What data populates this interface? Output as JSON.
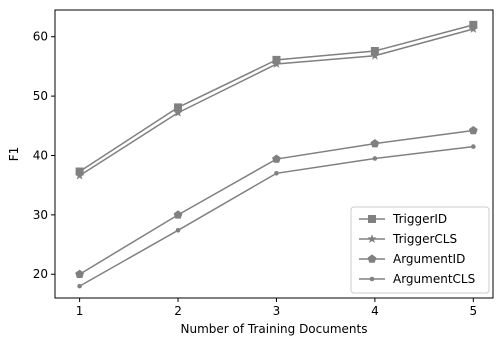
{
  "chart_data": {
    "type": "line",
    "title": "",
    "xlabel": "Number of Training Documents",
    "ylabel": "F1",
    "x": [
      1,
      2,
      3,
      4,
      5
    ],
    "xticks": [
      "1",
      "2",
      "3",
      "4",
      "5"
    ],
    "yticks": [
      "20",
      "30",
      "40",
      "50",
      "60"
    ],
    "ytick_values": [
      20,
      30,
      40,
      50,
      60
    ],
    "xlim": [
      0.75,
      5.2
    ],
    "ylim": [
      16,
      64.5
    ],
    "grid": false,
    "legend_position": "lower-right",
    "series": [
      {
        "name": "TriggerID",
        "marker": "square",
        "color": "#808080",
        "values": [
          37.3,
          48.1,
          56.1,
          57.6,
          62.0
        ]
      },
      {
        "name": "TriggerCLS",
        "marker": "star",
        "color": "#808080",
        "values": [
          36.6,
          47.2,
          55.4,
          56.8,
          61.3
        ]
      },
      {
        "name": "ArgumentID",
        "marker": "pentagon",
        "color": "#808080",
        "values": [
          20.0,
          30.0,
          39.4,
          42.0,
          44.2
        ]
      },
      {
        "name": "ArgumentCLS",
        "marker": "dot",
        "color": "#808080",
        "values": [
          18.0,
          27.4,
          37.0,
          39.5,
          41.5
        ]
      }
    ]
  }
}
